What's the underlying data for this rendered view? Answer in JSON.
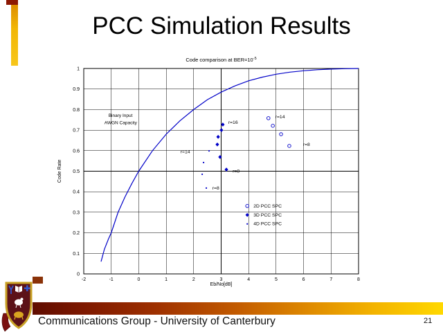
{
  "slide": {
    "title": "PCC Simulation Results",
    "footer_text": "Communications Group - University of Canterbury",
    "page_number": "21"
  },
  "decor": {
    "accent_dark_red": "#8C1804",
    "accent_gold": "#F2B705",
    "accent_brown": "#8A3208",
    "footer_gradient_left": "#5F0C00",
    "footer_gradient_right": "#FFD800"
  },
  "chart_data": {
    "type": "scatter",
    "title_main": "Code comparison at BER=10",
    "title_sup": "-5",
    "xlabel": "Eb/No[dB]",
    "ylabel": "Code Rate",
    "xlim": [
      -2,
      8
    ],
    "ylim": [
      0,
      1
    ],
    "x_ticks": [
      "-2",
      "-1",
      "0",
      "1",
      "2",
      "3",
      "4",
      "5",
      "6",
      "7",
      "8"
    ],
    "y_ticks": [
      "0",
      "0.1",
      "0.2",
      "0.3",
      "0.4",
      "0.5",
      "0.6",
      "0.7",
      "0.8",
      "0.9",
      "1"
    ],
    "grid": true,
    "line_color": "#0000C8",
    "capacity_curve": {
      "label_line1": "Binary Input",
      "label_line2": "AWGN Capacity",
      "label_pos": {
        "x1": -1.1,
        "y1": 0.765,
        "x2": -1.25,
        "y2": 0.729
      },
      "points": [
        [
          -1.37,
          0.06
        ],
        [
          -1.25,
          0.12
        ],
        [
          -1.1,
          0.17
        ],
        [
          -1.0,
          0.2
        ],
        [
          -0.75,
          0.3
        ],
        [
          -0.5,
          0.375
        ],
        [
          -0.25,
          0.44
        ],
        [
          0,
          0.5
        ],
        [
          0.5,
          0.6
        ],
        [
          1,
          0.68
        ],
        [
          1.5,
          0.745
        ],
        [
          2,
          0.8
        ],
        [
          2.5,
          0.848
        ],
        [
          3,
          0.885
        ],
        [
          3.5,
          0.915
        ],
        [
          4,
          0.94
        ],
        [
          4.5,
          0.958
        ],
        [
          5,
          0.972
        ],
        [
          5.5,
          0.982
        ],
        [
          6,
          0.989
        ],
        [
          6.5,
          0.994
        ],
        [
          7,
          0.997
        ],
        [
          7.5,
          0.999
        ],
        [
          8,
          1.0
        ]
      ]
    },
    "series": [
      {
        "name": "2D PCC SPC",
        "marker": "circle",
        "points": [
          [
            4.72,
            0.758
          ],
          [
            4.88,
            0.721
          ],
          [
            5.18,
            0.68
          ],
          [
            5.48,
            0.623
          ]
        ]
      },
      {
        "name": "3D PCC SPC",
        "marker": "diamond",
        "points": [
          [
            3.06,
            0.727
          ],
          [
            3.01,
            0.7
          ],
          [
            2.89,
            0.667
          ],
          [
            2.86,
            0.63
          ],
          [
            2.96,
            0.569
          ],
          [
            3.19,
            0.508
          ]
        ]
      },
      {
        "name": "4D PCC SPC",
        "marker": "dot",
        "points": [
          [
            2.56,
            0.599
          ],
          [
            2.36,
            0.542
          ],
          [
            2.31,
            0.485
          ],
          [
            2.46,
            0.418
          ]
        ]
      }
    ],
    "point_labels": [
      {
        "text": "r=16",
        "x": 3.26,
        "y": 0.73
      },
      {
        "text": "r=14",
        "x": 4.97,
        "y": 0.757
      },
      {
        "text": "r=8",
        "x": 5.98,
        "y": 0.623
      },
      {
        "text": "r=14",
        "x": 1.52,
        "y": 0.588
      },
      {
        "text": "r=8",
        "x": 3.42,
        "y": 0.493
      },
      {
        "text": "r=8",
        "x": 2.68,
        "y": 0.411
      }
    ],
    "legend": {
      "position": "inside-right",
      "x": 3.95,
      "y_start": 0.324,
      "dy": 0.0437
    }
  }
}
